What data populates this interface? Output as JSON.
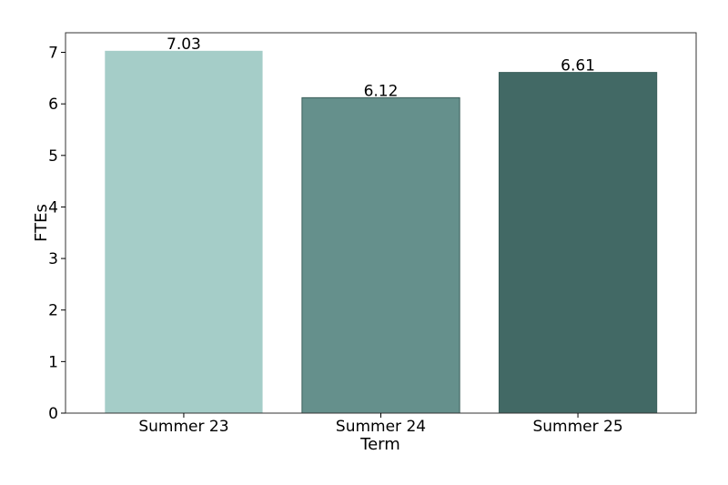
{
  "chart_data": {
    "type": "bar",
    "title": "",
    "xlabel": "Term",
    "ylabel": "FTEs",
    "categories": [
      "Summer 23",
      "Summer 24",
      "Summer 25"
    ],
    "values": [
      7.03,
      6.12,
      6.61
    ],
    "data_labels": [
      "7.03",
      "6.12",
      "6.61"
    ],
    "colors": [
      "#a5cdc8",
      "#65908c",
      "#426965"
    ],
    "ylim": [
      0,
      7.38
    ],
    "yticks": [
      0,
      1,
      2,
      3,
      4,
      5,
      6,
      7
    ],
    "grid": false,
    "legend": "none"
  }
}
